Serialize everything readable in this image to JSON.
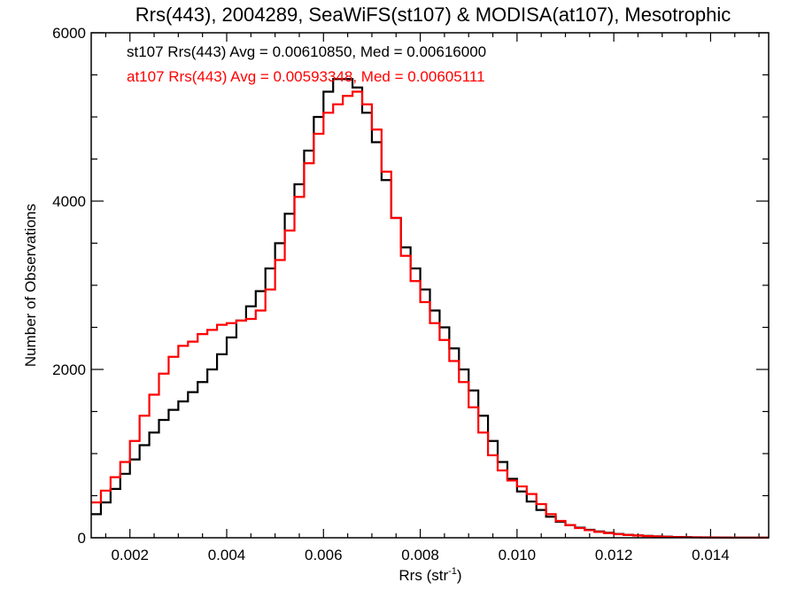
{
  "chart_data": {
    "type": "line",
    "title": "Rrs(443), 2004289, SeaWiFS(st107) & MODISA(at107), Mesotrophic",
    "xlabel": "Rrs (str",
    "xlabel_sup": "-1",
    "xlabel_end": ")",
    "ylabel": "Number of Observations",
    "xlim": [
      0.0012,
      0.0152
    ],
    "ylim": [
      0,
      6000
    ],
    "x_ticks": [
      {
        "value": 0.002,
        "label": "0.002"
      },
      {
        "value": 0.004,
        "label": "0.004"
      },
      {
        "value": 0.006,
        "label": "0.006"
      },
      {
        "value": 0.008,
        "label": "0.008"
      },
      {
        "value": 0.01,
        "label": "0.010"
      },
      {
        "value": 0.012,
        "label": "0.012"
      },
      {
        "value": 0.014,
        "label": "0.014"
      }
    ],
    "y_ticks": [
      {
        "value": 0,
        "label": "0"
      },
      {
        "value": 2000,
        "label": "2000"
      },
      {
        "value": 4000,
        "label": "4000"
      },
      {
        "value": 6000,
        "label": "6000"
      }
    ],
    "annotations": [
      {
        "text": "st107 Rrs(443) Avg = 0.00610850, Med = 0.00616000",
        "color": "#000000"
      },
      {
        "text": "at107 Rrs(443) Avg = 0.00593348, Med = 0.00605111",
        "color": "#ff0000"
      }
    ],
    "series": [
      {
        "color": "#000000",
        "step": true,
        "x": [
          0.0012,
          0.0014,
          0.0016,
          0.0018,
          0.002,
          0.0022,
          0.0024,
          0.0026,
          0.0028,
          0.003,
          0.0032,
          0.0034,
          0.0036,
          0.0038,
          0.004,
          0.0042,
          0.0044,
          0.0046,
          0.0048,
          0.005,
          0.0052,
          0.0054,
          0.0056,
          0.0058,
          0.006,
          0.0062,
          0.0064,
          0.0066,
          0.0068,
          0.007,
          0.0072,
          0.0074,
          0.0076,
          0.0078,
          0.008,
          0.0082,
          0.0084,
          0.0086,
          0.0088,
          0.009,
          0.0092,
          0.0094,
          0.0096,
          0.0098,
          0.01,
          0.0102,
          0.0104,
          0.0106,
          0.0108,
          0.011,
          0.0112,
          0.0114,
          0.0116,
          0.0118,
          0.012,
          0.0122,
          0.0124,
          0.0126,
          0.0128,
          0.013,
          0.0132,
          0.0134,
          0.0136,
          0.0138,
          0.014,
          0.0142,
          0.0144,
          0.0146,
          0.0148,
          0.015,
          0.0152
        ],
        "y": [
          280,
          420,
          580,
          760,
          930,
          1100,
          1250,
          1400,
          1520,
          1620,
          1730,
          1850,
          2000,
          2180,
          2380,
          2580,
          2750,
          2930,
          3200,
          3500,
          3850,
          4200,
          4600,
          5000,
          5300,
          5450,
          5450,
          5350,
          5050,
          4700,
          4250,
          3800,
          3450,
          3200,
          2950,
          2700,
          2500,
          2250,
          2000,
          1750,
          1450,
          1150,
          900,
          700,
          550,
          430,
          330,
          250,
          190,
          150,
          120,
          95,
          75,
          60,
          45,
          35,
          28,
          22,
          17,
          13,
          10,
          8,
          6,
          5,
          4,
          3,
          2,
          2,
          1,
          1,
          1
        ]
      },
      {
        "color": "#ff0000",
        "step": true,
        "x": [
          0.0012,
          0.0014,
          0.0016,
          0.0018,
          0.002,
          0.0022,
          0.0024,
          0.0026,
          0.0028,
          0.003,
          0.0032,
          0.0034,
          0.0036,
          0.0038,
          0.004,
          0.0042,
          0.0044,
          0.0046,
          0.0048,
          0.005,
          0.0052,
          0.0054,
          0.0056,
          0.0058,
          0.006,
          0.0062,
          0.0064,
          0.0066,
          0.0068,
          0.007,
          0.0072,
          0.0074,
          0.0076,
          0.0078,
          0.008,
          0.0082,
          0.0084,
          0.0086,
          0.0088,
          0.009,
          0.0092,
          0.0094,
          0.0096,
          0.0098,
          0.01,
          0.0102,
          0.0104,
          0.0106,
          0.0108,
          0.011,
          0.0112,
          0.0114,
          0.0116,
          0.0118,
          0.012,
          0.0122,
          0.0124,
          0.0126,
          0.0128,
          0.013,
          0.0132,
          0.0134,
          0.0136,
          0.0138,
          0.014,
          0.0142,
          0.0144,
          0.0146,
          0.0148,
          0.015,
          0.0152
        ],
        "y": [
          420,
          560,
          720,
          900,
          1150,
          1450,
          1700,
          1950,
          2150,
          2280,
          2330,
          2420,
          2470,
          2530,
          2550,
          2580,
          2600,
          2700,
          2950,
          3300,
          3650,
          4050,
          4450,
          4800,
          5050,
          5150,
          5250,
          5300,
          5150,
          4850,
          4350,
          3800,
          3350,
          3050,
          2800,
          2550,
          2350,
          2100,
          1850,
          1550,
          1250,
          980,
          800,
          680,
          610,
          520,
          400,
          280,
          200,
          150,
          115,
          90,
          70,
          55,
          42,
          33,
          26,
          20,
          15,
          11,
          8,
          6,
          5,
          4,
          3,
          3,
          2,
          2,
          1,
          1,
          1
        ]
      }
    ]
  }
}
